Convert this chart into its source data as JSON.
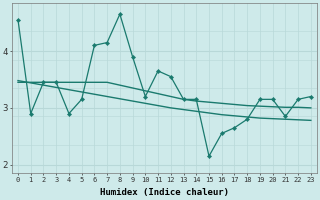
{
  "xlabel": "Humidex (Indice chaleur)",
  "x_values": [
    0,
    1,
    2,
    3,
    4,
    5,
    6,
    7,
    8,
    9,
    10,
    11,
    12,
    13,
    14,
    15,
    16,
    17,
    18,
    19,
    20,
    21,
    22,
    23
  ],
  "zigzag_y": [
    4.55,
    2.9,
    3.45,
    3.45,
    2.9,
    3.15,
    4.1,
    4.15,
    4.65,
    3.9,
    3.2,
    3.65,
    3.55,
    3.15,
    3.15,
    2.15,
    2.55,
    2.65,
    2.8,
    3.15,
    3.15,
    2.85,
    3.15,
    3.2
  ],
  "flat_y_start": 0,
  "flat_y_end": 23,
  "flat_y": [
    3.45,
    3.45,
    3.45,
    3.45,
    3.45,
    3.45,
    3.45,
    3.45,
    3.4,
    3.35,
    3.3,
    3.25,
    3.2,
    3.15,
    3.12,
    3.1,
    3.08,
    3.06,
    3.04,
    3.03,
    3.02,
    3.01,
    3.01,
    3.0
  ],
  "trend_y": [
    3.48,
    3.44,
    3.4,
    3.36,
    3.32,
    3.28,
    3.24,
    3.2,
    3.16,
    3.12,
    3.08,
    3.04,
    3.0,
    2.97,
    2.94,
    2.91,
    2.88,
    2.86,
    2.84,
    2.82,
    2.81,
    2.8,
    2.79,
    2.78
  ],
  "ylim": [
    1.85,
    4.85
  ],
  "yticks": [
    2,
    3,
    4
  ],
  "xlim": [
    -0.5,
    23.5
  ],
  "bg_color": "#ceeaea",
  "line_color": "#1a7a6e",
  "grid_major_color": "#b8d8d8",
  "grid_minor_color": "#cde6e6"
}
